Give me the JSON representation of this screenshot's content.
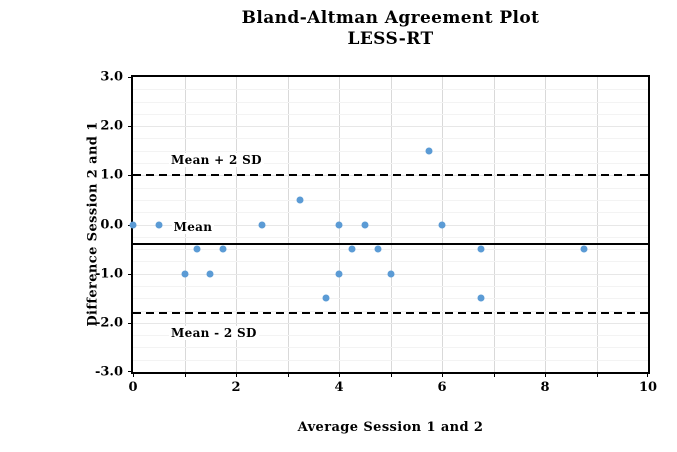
{
  "chart_data": {
    "type": "scatter",
    "title": "Bland-Altman Agreement Plot",
    "subtitle": "LESS-RT",
    "xlabel": "Average Session 1 and 2",
    "ylabel": "Difference Session 2 and 1",
    "xlim": [
      0,
      10
    ],
    "ylim": [
      -3.0,
      3.0
    ],
    "x_ticks": [
      {
        "v": 0,
        "label": "0"
      },
      {
        "v": 2,
        "label": "2"
      },
      {
        "v": 4,
        "label": "4"
      },
      {
        "v": 6,
        "label": "6"
      },
      {
        "v": 8,
        "label": "8"
      },
      {
        "v": 10,
        "label": "10"
      }
    ],
    "y_ticks": [
      {
        "v": 3.0,
        "label": "3.0"
      },
      {
        "v": 2.0,
        "label": "2.0"
      },
      {
        "v": 1.0,
        "label": "1.0"
      },
      {
        "v": 0.0,
        "label": "0.0"
      },
      {
        "v": -1.0,
        "label": "-1.0"
      },
      {
        "v": -2.0,
        "label": "-2.0"
      },
      {
        "v": -3.0,
        "label": "-3.0"
      }
    ],
    "grid": {
      "x_minor_step": 1,
      "y_minor_step": 0.25,
      "x_tick_mark_step": 1,
      "y_tick_mark_step": 1
    },
    "marker_color": "#5B9BD5",
    "line_color": "#000000",
    "points": [
      [
        0,
        0.0
      ],
      [
        0.5,
        0.0
      ],
      [
        1.0,
        -1.0
      ],
      [
        1.25,
        -0.5
      ],
      [
        1.5,
        -1.0
      ],
      [
        1.75,
        -0.5
      ],
      [
        2.5,
        0.0
      ],
      [
        3.25,
        0.5
      ],
      [
        3.75,
        -1.5
      ],
      [
        4.0,
        0.0
      ],
      [
        4.0,
        -1.0
      ],
      [
        4.25,
        -0.5
      ],
      [
        4.5,
        0.0
      ],
      [
        4.75,
        -0.5
      ],
      [
        5.0,
        -1.0
      ],
      [
        5.75,
        1.5
      ],
      [
        6.0,
        0.0
      ],
      [
        6.75,
        -0.5
      ],
      [
        6.75,
        -1.5
      ],
      [
        8.75,
        -0.5
      ]
    ],
    "reference_lines": [
      {
        "label": "Mean + 2 SD",
        "value": 1.0,
        "style": "dashed",
        "label_x": 0.7,
        "label_y": 1.32
      },
      {
        "label": "Mean",
        "value": -0.4,
        "style": "solid",
        "label_x": 0.75,
        "label_y": -0.05
      },
      {
        "label": "Mean - 2 SD",
        "value": -1.8,
        "style": "dashed",
        "label_x": 0.7,
        "label_y": -2.2
      }
    ]
  }
}
